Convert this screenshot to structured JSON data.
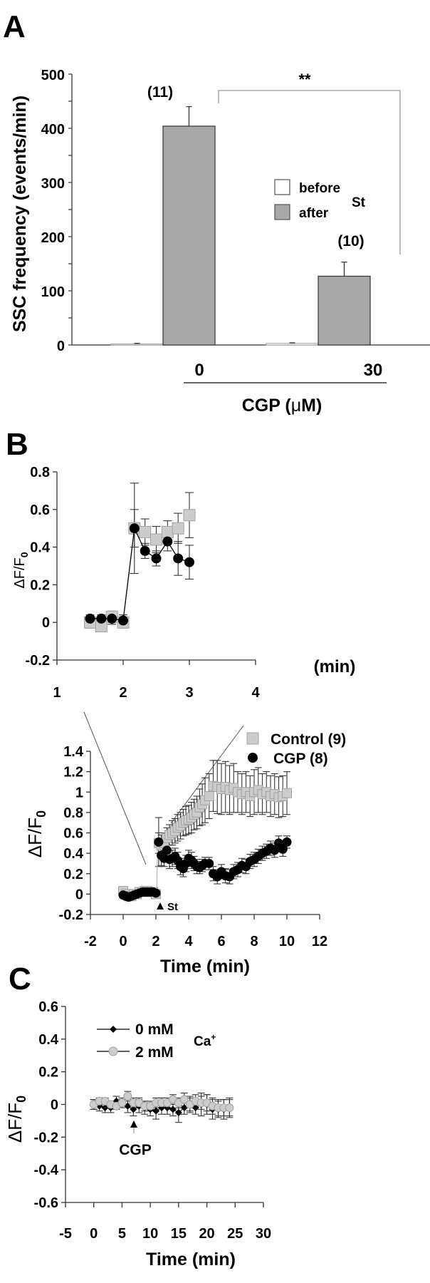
{
  "chart_data": [
    {
      "panel": "A",
      "type": "bar",
      "ylabel": "SSC frequency (events/min)",
      "xlabel": "CGP (μM)",
      "categories": [
        "0",
        "30"
      ],
      "ylim": [
        0,
        500
      ],
      "yticks": [
        "0",
        "100",
        "200",
        "300",
        "400",
        "500"
      ],
      "series": [
        {
          "name": "before",
          "color": "#ffffff",
          "values": [
            2,
            3
          ],
          "errors": [
            1,
            1
          ]
        },
        {
          "name": "after",
          "color": "#a8a8a8",
          "values": [
            404,
            127
          ],
          "errors": [
            36,
            26
          ]
        }
      ],
      "legend_group": "St",
      "n_labels": [
        "(11)",
        "(10)"
      ],
      "significance": "**"
    },
    {
      "panel": "B-inset",
      "type": "scatter",
      "ylabel": "ΔF/F0",
      "xlabel": "(min)",
      "xlim": [
        1,
        4
      ],
      "ylim": [
        -0.2,
        0.8
      ],
      "xticks": [
        "1",
        "2",
        "3",
        "4"
      ],
      "yticks": [
        "-0.2",
        "0",
        "0.2",
        "0.4",
        "0.6",
        "0.8"
      ],
      "series": [
        {
          "name": "Control",
          "marker": "square",
          "color": "#cccccc",
          "x": [
            1.5,
            1.67,
            1.83,
            2.0,
            2.17,
            2.33,
            2.5,
            2.67,
            2.83,
            3.0
          ],
          "y": [
            0.0,
            -0.02,
            0.03,
            0.0,
            0.5,
            0.48,
            0.44,
            0.48,
            0.5,
            0.57
          ],
          "err": [
            0.03,
            0.03,
            0.03,
            0.03,
            0.1,
            0.07,
            0.07,
            0.06,
            0.08,
            0.12
          ]
        },
        {
          "name": "CGP",
          "marker": "circle",
          "color": "#000000",
          "x": [
            1.5,
            1.67,
            1.83,
            2.0,
            2.17,
            2.33,
            2.5,
            2.67,
            2.83,
            3.0
          ],
          "y": [
            0.02,
            0.02,
            0.02,
            0.01,
            0.5,
            0.38,
            0.34,
            0.43,
            0.34,
            0.32
          ],
          "err": [
            0.02,
            0.02,
            0.03,
            0.03,
            0.24,
            0.04,
            0.04,
            0.05,
            0.09,
            0.09
          ]
        }
      ]
    },
    {
      "panel": "B",
      "type": "scatter",
      "ylabel": "ΔF/F0",
      "xlabel": "Time (min)",
      "xlim": [
        -2,
        12
      ],
      "ylim": [
        -0.2,
        1.4
      ],
      "xticks": [
        "-2",
        "0",
        "2",
        "4",
        "6",
        "8",
        "10",
        "12"
      ],
      "yticks": [
        "-0.2",
        "0",
        "0.2",
        "0.4",
        "0.6",
        "0.8",
        "1",
        "1.2",
        "1.4"
      ],
      "annotation": "St",
      "series": [
        {
          "name": "Control (9)",
          "marker": "square",
          "color": "#cccccc",
          "x": [
            0.0,
            0.17,
            0.33,
            0.5,
            0.67,
            0.83,
            1.0,
            1.17,
            1.33,
            1.5,
            1.67,
            1.83,
            2.0,
            2.17,
            2.33,
            2.5,
            2.67,
            2.83,
            3.0,
            3.17,
            3.33,
            3.5,
            3.67,
            3.83,
            4.0,
            4.17,
            4.33,
            4.5,
            4.67,
            4.83,
            5.0,
            5.25,
            5.5,
            5.75,
            6.0,
            6.25,
            6.5,
            6.75,
            7.0,
            7.25,
            7.5,
            7.75,
            8.0,
            8.25,
            8.5,
            8.75,
            9.0,
            9.25,
            9.5,
            9.75,
            10.0
          ],
          "y": [
            0.03,
            0.0,
            -0.02,
            -0.02,
            0.0,
            0.0,
            0.02,
            0.02,
            0.03,
            0.03,
            0.02,
            0.02,
            0.0,
            0.5,
            0.48,
            0.5,
            0.55,
            0.58,
            0.6,
            0.62,
            0.65,
            0.67,
            0.7,
            0.72,
            0.73,
            0.75,
            0.78,
            0.8,
            0.85,
            0.88,
            0.92,
            0.96,
            1.06,
            1.05,
            1.03,
            1.05,
            1.02,
            1.04,
            1.0,
            0.98,
            1.0,
            0.96,
            1.0,
            1.02,
            0.98,
            1.0,
            0.96,
            0.98,
            0.95,
            0.96,
            0.99
          ],
          "err": [
            0.03,
            0.03,
            0.03,
            0.03,
            0.03,
            0.03,
            0.03,
            0.03,
            0.03,
            0.03,
            0.03,
            0.03,
            0.03,
            0.1,
            0.1,
            0.1,
            0.1,
            0.1,
            0.12,
            0.12,
            0.13,
            0.13,
            0.13,
            0.14,
            0.14,
            0.15,
            0.15,
            0.16,
            0.18,
            0.2,
            0.22,
            0.22,
            0.25,
            0.26,
            0.25,
            0.25,
            0.24,
            0.24,
            0.2,
            0.2,
            0.2,
            0.2,
            0.22,
            0.22,
            0.2,
            0.2,
            0.2,
            0.2,
            0.2,
            0.2,
            0.21
          ]
        },
        {
          "name": "CGP (8)",
          "marker": "circle",
          "color": "#000000",
          "x": [
            0.0,
            0.17,
            0.33,
            0.5,
            0.67,
            0.83,
            1.0,
            1.17,
            1.33,
            1.5,
            1.67,
            1.83,
            2.0,
            2.17,
            2.33,
            2.5,
            2.67,
            2.83,
            3.0,
            3.17,
            3.33,
            3.5,
            3.67,
            3.83,
            4.0,
            4.17,
            4.33,
            4.5,
            4.67,
            4.83,
            5.0,
            5.25,
            5.5,
            5.75,
            6.0,
            6.25,
            6.5,
            6.75,
            7.0,
            7.25,
            7.5,
            7.75,
            8.0,
            8.25,
            8.5,
            8.75,
            9.0,
            9.25,
            9.5,
            9.75,
            10.0
          ],
          "y": [
            -0.01,
            -0.02,
            -0.03,
            -0.02,
            -0.01,
            0.0,
            0.01,
            0.02,
            0.02,
            0.02,
            0.02,
            0.02,
            0.01,
            0.51,
            0.38,
            0.35,
            0.43,
            0.34,
            0.35,
            0.37,
            0.33,
            0.27,
            0.25,
            0.3,
            0.35,
            0.33,
            0.3,
            0.27,
            0.26,
            0.28,
            0.3,
            0.3,
            0.2,
            0.17,
            0.22,
            0.18,
            0.17,
            0.22,
            0.24,
            0.28,
            0.27,
            0.32,
            0.34,
            0.37,
            0.4,
            0.42,
            0.45,
            0.43,
            0.5,
            0.44,
            0.51
          ],
          "err": [
            0.02,
            0.02,
            0.02,
            0.02,
            0.02,
            0.02,
            0.02,
            0.02,
            0.02,
            0.02,
            0.02,
            0.02,
            0.02,
            0.24,
            0.1,
            0.08,
            0.09,
            0.09,
            0.08,
            0.08,
            0.08,
            0.08,
            0.08,
            0.08,
            0.08,
            0.08,
            0.07,
            0.07,
            0.06,
            0.06,
            0.06,
            0.06,
            0.07,
            0.07,
            0.07,
            0.07,
            0.07,
            0.07,
            0.07,
            0.07,
            0.07,
            0.07,
            0.07,
            0.07,
            0.07,
            0.07,
            0.07,
            0.07,
            0.07,
            0.07,
            0.06
          ]
        }
      ]
    },
    {
      "panel": "C",
      "type": "line",
      "ylabel": "ΔF/F0",
      "xlabel": "Time (min)",
      "xlim": [
        -5,
        30
      ],
      "ylim": [
        -0.6,
        0.6
      ],
      "xticks": [
        "-5",
        "0",
        "5",
        "10",
        "15",
        "20",
        "25",
        "30"
      ],
      "yticks": [
        "-0.6",
        "-0.4",
        "-0.2",
        "0",
        "0.2",
        "0.4",
        "0.6"
      ],
      "annotation": "CGP",
      "legend_group": "Ca+",
      "series": [
        {
          "name": "0 mM",
          "marker": "diamond",
          "color": "#000000",
          "x": [
            0,
            1,
            2,
            3,
            4,
            5,
            6,
            7,
            8,
            9,
            10,
            11,
            12,
            13,
            14,
            15,
            16,
            17,
            18,
            19,
            20,
            21,
            22,
            23,
            24
          ],
          "y": [
            0.0,
            -0.01,
            -0.02,
            -0.02,
            0.02,
            0.01,
            -0.01,
            -0.03,
            -0.01,
            -0.02,
            -0.03,
            -0.04,
            -0.02,
            -0.02,
            -0.03,
            -0.05,
            -0.02,
            0.0,
            -0.02,
            0.0,
            0.0,
            -0.03,
            -0.03,
            -0.03,
            -0.02
          ],
          "err": [
            0.03,
            0.03,
            0.03,
            0.03,
            0.03,
            0.03,
            0.04,
            0.04,
            0.04,
            0.04,
            0.04,
            0.05,
            0.04,
            0.04,
            0.04,
            0.06,
            0.04,
            0.05,
            0.04,
            0.07,
            0.06,
            0.06,
            0.05,
            0.06,
            0.06
          ]
        },
        {
          "name": "2 mM",
          "marker": "circle",
          "color": "#cccccc",
          "x": [
            0,
            1,
            2,
            3,
            4,
            5,
            6,
            7,
            8,
            9,
            10,
            11,
            12,
            13,
            14,
            15,
            16,
            17,
            18,
            19,
            20,
            21,
            22,
            23,
            24
          ],
          "y": [
            0.0,
            0.02,
            0.02,
            0.0,
            -0.01,
            0.01,
            0.05,
            0.01,
            0.01,
            -0.01,
            -0.01,
            0.01,
            0.01,
            0.01,
            0.03,
            0.01,
            0.03,
            0.0,
            0.02,
            0.01,
            0.01,
            -0.01,
            -0.02,
            -0.02,
            -0.02
          ],
          "err": [
            0.03,
            0.02,
            0.02,
            0.02,
            0.02,
            0.02,
            0.03,
            0.03,
            0.03,
            0.03,
            0.03,
            0.03,
            0.03,
            0.03,
            0.03,
            0.03,
            0.04,
            0.04,
            0.04,
            0.04,
            0.05,
            0.05,
            0.05,
            0.05,
            0.05
          ]
        }
      ]
    }
  ],
  "labels": {
    "panel_a": "A",
    "panel_b": "B",
    "panel_c": "C",
    "a_ylabel": "SSC frequency (events/min)",
    "a_cat0": "0",
    "a_cat1": "30",
    "a_xlabel_prefix": "CGP (",
    "a_xlabel_mu": "μ",
    "a_xlabel_suffix": "M)",
    "a_n0": "(11)",
    "a_n1": "(10)",
    "a_sig": "**",
    "a_leg_before": "before",
    "a_leg_after": "after",
    "a_leg_group": "St",
    "b_inset_xunit": "(min)",
    "b_ylabel_main": "ΔF/F",
    "b_ylabel_sub": "0",
    "b_leg_control": "Control (9)",
    "b_leg_cgp": "CGP (8)",
    "b_st": "St",
    "b_xlabel": "Time (min)",
    "c_leg_0": "0 mM",
    "c_leg_2": "2 mM",
    "c_leg_group": "Ca",
    "c_leg_group_sup": "+",
    "c_cgp": "CGP",
    "c_xlabel": "Time (min)"
  },
  "colors": {
    "bar_after": "#a8a8a8",
    "marker_gray": "#cccccc",
    "marker_gray_stroke": "#a0a0a0",
    "axis": "#333333"
  }
}
